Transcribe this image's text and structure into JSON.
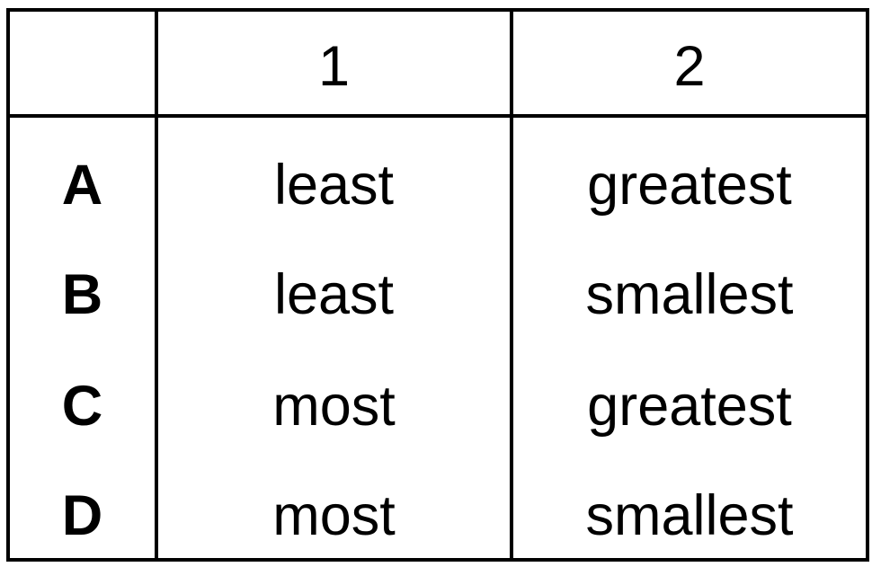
{
  "chart_data": {
    "type": "table",
    "columns": [
      "",
      "1",
      "2"
    ],
    "rows": [
      [
        "A",
        "least",
        "greatest"
      ],
      [
        "B",
        "least",
        "smallest"
      ],
      [
        "C",
        "most",
        "greatest"
      ],
      [
        "D",
        "most",
        "smallest"
      ]
    ],
    "layout": {
      "header_separator": true,
      "inner_row_rules": false,
      "column_rules": true
    }
  },
  "colors": {
    "border": "#000000",
    "text": "#000000",
    "background": "#ffffff"
  }
}
